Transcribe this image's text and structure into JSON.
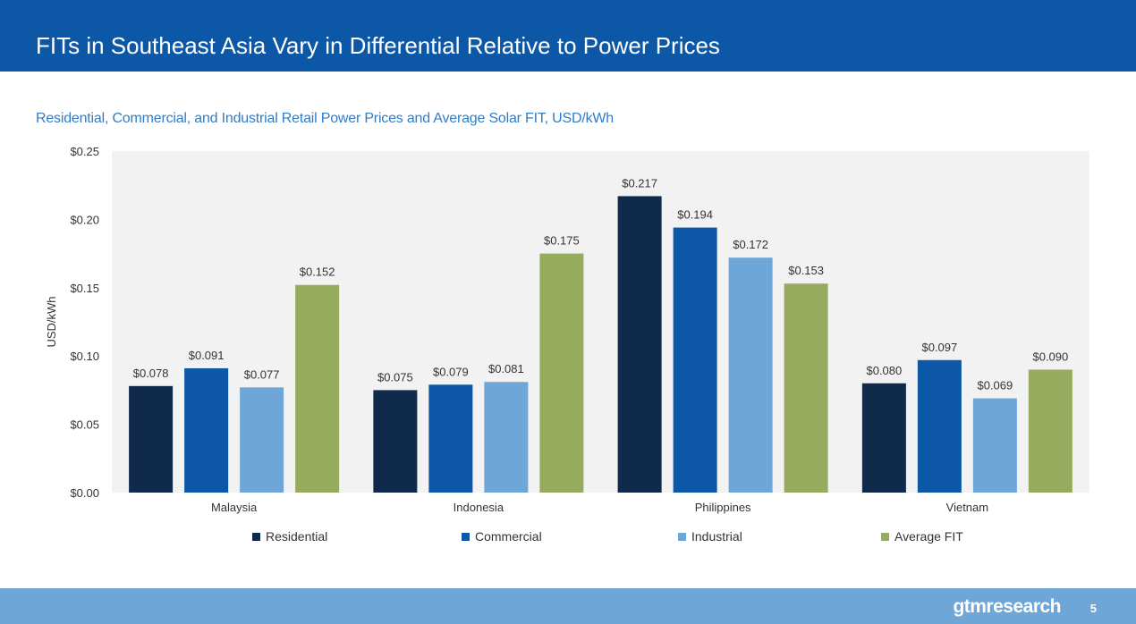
{
  "header": {
    "title": "FITs in Southeast Asia Vary in Differential Relative to Power Prices"
  },
  "chart_data": {
    "type": "bar",
    "title": "Residential, Commercial, and Industrial Retail Power Prices and Average Solar FIT, USD/kWh",
    "xlabel": "",
    "ylabel": "USD/kWh",
    "ylim": [
      0,
      0.25
    ],
    "y_ticks": [
      {
        "value": 0.0,
        "label": "$0.00"
      },
      {
        "value": 0.05,
        "label": "$0.05"
      },
      {
        "value": 0.1,
        "label": "$0.10"
      },
      {
        "value": 0.15,
        "label": "$0.15"
      },
      {
        "value": 0.2,
        "label": "$0.20"
      },
      {
        "value": 0.25,
        "label": "$0.25"
      }
    ],
    "categories": [
      "Malaysia",
      "Indonesia",
      "Philippines",
      "Vietnam"
    ],
    "series": [
      {
        "name": "Residential",
        "color": "#0f2a4a",
        "values": [
          0.078,
          0.075,
          0.217,
          0.08
        ],
        "labels": [
          "$0.078",
          "$0.075",
          "$0.217",
          "$0.080"
        ]
      },
      {
        "name": "Commercial",
        "color": "#0c57a6",
        "values": [
          0.091,
          0.079,
          0.194,
          0.097
        ],
        "labels": [
          "$0.091",
          "$0.079",
          "$0.194",
          "$0.097"
        ]
      },
      {
        "name": "Industrial",
        "color": "#6ea6d7",
        "values": [
          0.077,
          0.081,
          0.172,
          0.069
        ],
        "labels": [
          "$0.077",
          "$0.081",
          "$0.172",
          "$0.069"
        ]
      },
      {
        "name": "Average FIT",
        "color": "#96ab5e",
        "values": [
          0.152,
          0.175,
          0.153,
          0.09
        ],
        "labels": [
          "$0.152",
          "$0.175",
          "$0.153",
          "$0.090"
        ]
      }
    ],
    "grid": false,
    "legend_position": "bottom"
  },
  "footer": {
    "brand": "gtmresearch",
    "page_number": "5"
  }
}
